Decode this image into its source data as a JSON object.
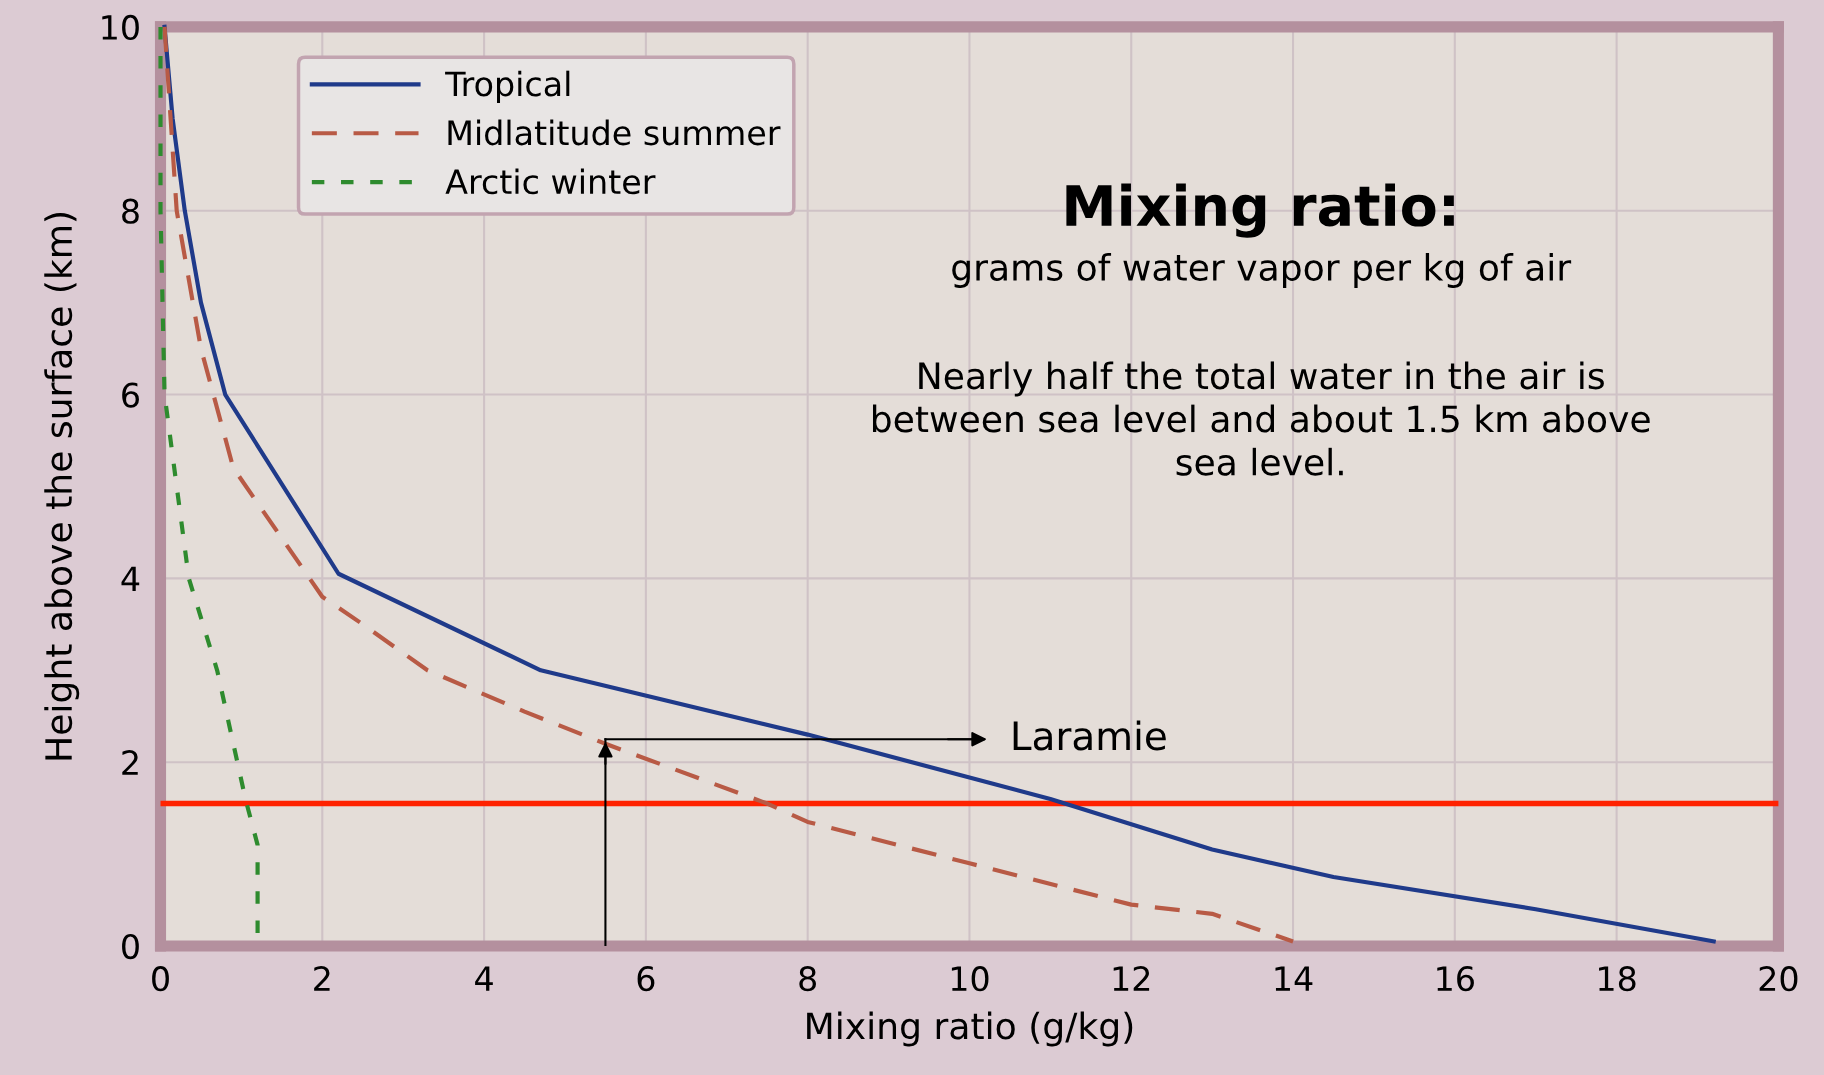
{
  "chart_data": {
    "type": "line",
    "xlabel": "Mixing ratio (g/kg)",
    "ylabel": "Height above the surface (km)",
    "xlim": [
      0,
      20
    ],
    "ylim": [
      0,
      10
    ],
    "xticks": [
      0,
      2,
      4,
      6,
      8,
      10,
      12,
      14,
      16,
      18,
      20
    ],
    "yticks": [
      0,
      2,
      4,
      6,
      8,
      10
    ],
    "grid": true,
    "legend": "top left",
    "series": [
      {
        "name": "Tropical",
        "color": "#1f3a8a",
        "line_style": "solid",
        "x": [
          0.05,
          0.15,
          0.3,
          0.5,
          0.8,
          2.2,
          4.7,
          8.0,
          11.0,
          13.0,
          14.5,
          17.0,
          19.2
        ],
        "values": [
          10,
          9,
          8,
          7,
          6,
          4.05,
          3.0,
          2.3,
          1.6,
          1.05,
          0.75,
          0.4,
          0.05
        ]
      },
      {
        "name": "Midlatitude summer",
        "color": "#b85a45",
        "line_style": "dashed",
        "x": [
          0.05,
          0.2,
          0.5,
          0.9,
          2.0,
          2.5,
          3.3,
          4.5,
          5.5,
          7.5,
          8.0,
          10.0,
          12.0,
          13.0,
          14.0
        ],
        "values": [
          10,
          8,
          6.5,
          5.2,
          3.8,
          3.5,
          3.0,
          2.55,
          2.2,
          1.55,
          1.35,
          0.9,
          0.45,
          0.35,
          0.05
        ]
      },
      {
        "name": "Arctic winter",
        "color": "#2e8b2e",
        "line_style": "dotted",
        "x": [
          0.0,
          0.0,
          0.05,
          0.2,
          0.35,
          0.7,
          0.9,
          1.05,
          1.2,
          1.2
        ],
        "values": [
          10,
          8,
          6,
          5,
          4,
          3,
          2.2,
          1.6,
          1.1,
          0.1
        ]
      }
    ],
    "ref_lines": [
      {
        "axis": "y",
        "value": 1.55,
        "color": "#ff2200",
        "line_style": "solid"
      }
    ],
    "annotations": [
      "Mixing ratio:",
      "grams of water vapor per kg of air",
      "Nearly half the total water in the air is\nbetween sea level and about 1.5 km above\nsea level.",
      {
        "text": "Laramie",
        "x": 5.5,
        "y": 2.25
      }
    ]
  }
}
